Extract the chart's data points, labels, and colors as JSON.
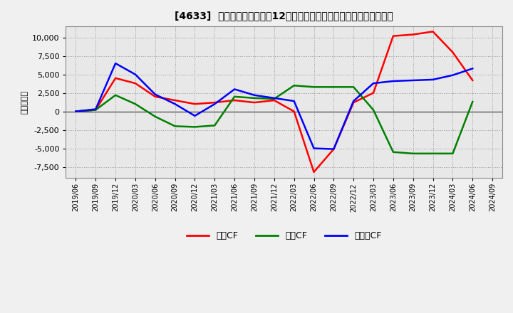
{
  "title": "[4633]  キャッシュフローの12か月移動合計の対前年同期増減額の推移",
  "ylabel": "（百万円）",
  "background_color": "#f0f0f0",
  "plot_bg_color": "#e8e8e8",
  "grid_color": "#999999",
  "x_labels": [
    "2019/06",
    "2019/09",
    "2019/12",
    "2020/03",
    "2020/06",
    "2020/09",
    "2020/12",
    "2021/03",
    "2021/06",
    "2021/09",
    "2021/12",
    "2022/03",
    "2022/06",
    "2022/09",
    "2022/12",
    "2023/03",
    "2023/06",
    "2023/09",
    "2023/12",
    "2024/03",
    "2024/06",
    "2024/09"
  ],
  "series": {
    "営業CF": {
      "color": "#ff0000",
      "values": [
        0,
        200,
        4500,
        3800,
        2000,
        1500,
        1000,
        1200,
        1500,
        1200,
        1500,
        0,
        -8200,
        -5100,
        1200,
        2500,
        10200,
        10400,
        10800,
        8000,
        4200,
        null
      ]
    },
    "投資CF": {
      "color": "#008000",
      "values": [
        0,
        200,
        2200,
        1000,
        -700,
        -2000,
        -2100,
        -1900,
        2000,
        1800,
        1700,
        3500,
        3300,
        3300,
        3300,
        200,
        -5500,
        -5700,
        -5700,
        -5700,
        1300,
        null
      ]
    },
    "フリーCF": {
      "color": "#0000ff",
      "values": [
        0,
        300,
        6500,
        5000,
        2300,
        1000,
        -600,
        1000,
        3000,
        2200,
        1800,
        1400,
        -5000,
        -5100,
        1400,
        3800,
        4100,
        4200,
        4300,
        4900,
        5800,
        null
      ]
    }
  },
  "ylim": [
    -9000,
    11500
  ],
  "yticks": [
    -7500,
    -5000,
    -2500,
    0,
    2500,
    5000,
    7500,
    10000
  ],
  "legend_labels": [
    "営業CF",
    "投資CF",
    "フリーCF"
  ],
  "legend_colors": [
    "#ff0000",
    "#008000",
    "#0000ff"
  ]
}
